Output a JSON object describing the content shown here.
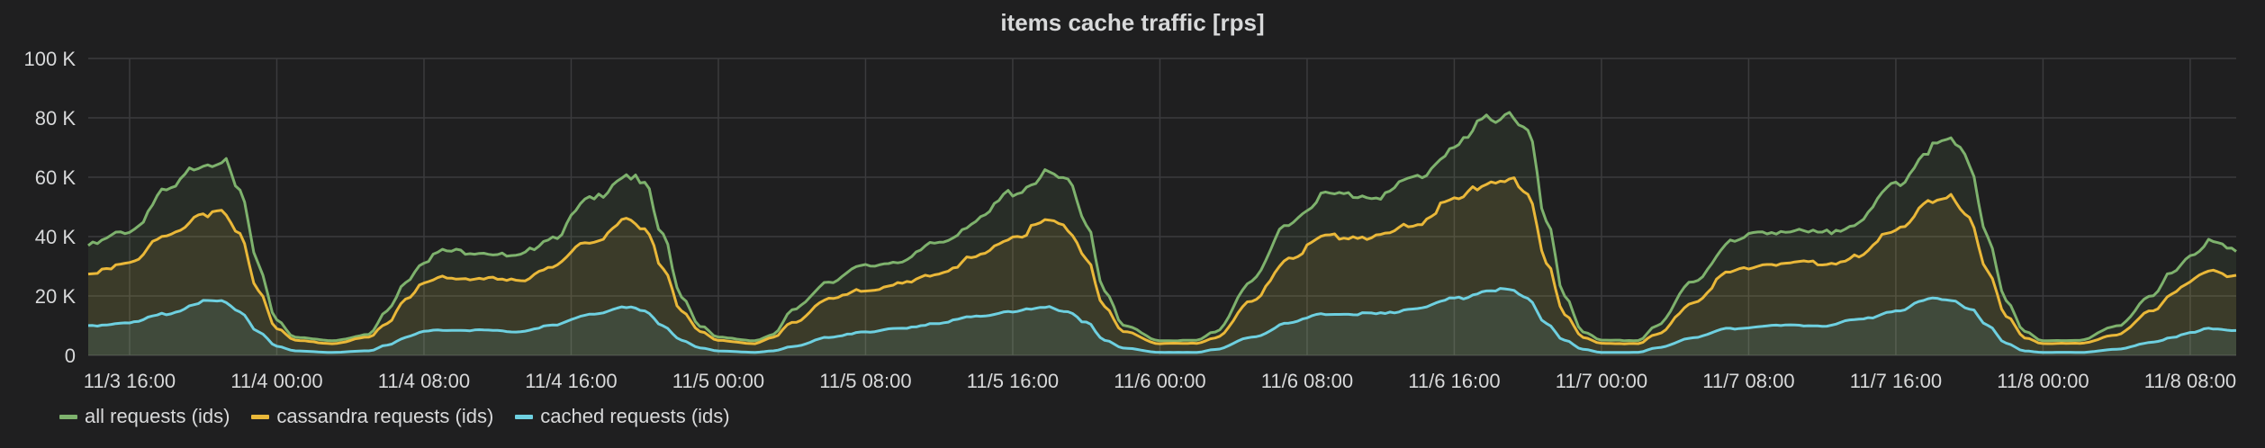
{
  "chart_data": {
    "type": "area",
    "title": "items cache traffic [rps]",
    "x_tick_labels": [
      "11/3 16:00",
      "11/4 00:00",
      "11/4 08:00",
      "11/4 16:00",
      "11/5 00:00",
      "11/5 08:00",
      "11/5 16:00",
      "11/6 00:00",
      "11/6 08:00",
      "11/6 16:00",
      "11/7 00:00",
      "11/7 08:00",
      "11/7 16:00",
      "11/8 00:00",
      "11/8 08:00"
    ],
    "x_hours_start": "11/3 13:45",
    "y_tick_labels": [
      "0",
      "20 K",
      "40 K",
      "60 K",
      "80 K",
      "100 K"
    ],
    "ylim": [
      0,
      100000
    ],
    "xlabel": "",
    "ylabel": "",
    "grid": true,
    "legend_position": "bottom-left",
    "series": [
      {
        "name": "all requests (ids)",
        "color": "#7eb26d",
        "points": [
          [
            "11/3 13:45",
            37000
          ],
          [
            "11/3 16:00",
            42000
          ],
          [
            "11/3 18:00",
            55000
          ],
          [
            "11/3 20:00",
            65000
          ],
          [
            "11/3 21:00",
            66000
          ],
          [
            "11/3 22:00",
            55000
          ],
          [
            "11/3 23:00",
            30000
          ],
          [
            "11/4 00:00",
            12000
          ],
          [
            "11/4 01:00",
            6000
          ],
          [
            "11/4 03:00",
            5000
          ],
          [
            "11/4 05:00",
            7000
          ],
          [
            "11/4 06:00",
            15000
          ],
          [
            "11/4 07:00",
            25000
          ],
          [
            "11/4 08:00",
            32000
          ],
          [
            "11/4 09:00",
            35000
          ],
          [
            "11/4 11:00",
            35000
          ],
          [
            "11/4 13:00",
            33000
          ],
          [
            "11/4 15:00",
            40000
          ],
          [
            "11/4 17:00",
            52000
          ],
          [
            "11/4 19:00",
            61000
          ],
          [
            "11/4 20:00",
            57000
          ],
          [
            "11/4 21:00",
            40000
          ],
          [
            "11/4 22:00",
            20000
          ],
          [
            "11/4 23:00",
            10000
          ],
          [
            "11/5 00:00",
            6000
          ],
          [
            "11/5 02:00",
            5000
          ],
          [
            "11/5 03:00",
            7000
          ],
          [
            "11/5 04:00",
            15000
          ],
          [
            "11/5 06:00",
            25000
          ],
          [
            "11/5 08:00",
            30000
          ],
          [
            "11/5 10:00",
            32000
          ],
          [
            "11/5 12:00",
            38000
          ],
          [
            "11/5 14:00",
            45000
          ],
          [
            "11/5 16:00",
            55000
          ],
          [
            "11/5 18:00",
            61000
          ],
          [
            "11/5 19:00",
            58000
          ],
          [
            "11/5 20:00",
            45000
          ],
          [
            "11/5 21:00",
            22000
          ],
          [
            "11/5 22:00",
            10000
          ],
          [
            "11/6 00:00",
            5000
          ],
          [
            "11/6 02:00",
            5000
          ],
          [
            "11/6 03:00",
            8000
          ],
          [
            "11/6 05:00",
            25000
          ],
          [
            "11/6 07:00",
            45000
          ],
          [
            "11/6 09:00",
            54000
          ],
          [
            "11/6 12:00",
            54000
          ],
          [
            "11/6 14:00",
            60000
          ],
          [
            "11/6 16:00",
            70000
          ],
          [
            "11/6 18:00",
            80000
          ],
          [
            "11/6 19:00",
            82000
          ],
          [
            "11/6 20:00",
            75000
          ],
          [
            "11/6 21:00",
            45000
          ],
          [
            "11/6 22:00",
            20000
          ],
          [
            "11/6 23:00",
            8000
          ],
          [
            "11/7 00:00",
            5000
          ],
          [
            "11/7 02:00",
            5000
          ],
          [
            "11/7 03:00",
            10000
          ],
          [
            "11/7 05:00",
            25000
          ],
          [
            "11/7 07:00",
            38000
          ],
          [
            "11/7 09:00",
            42000
          ],
          [
            "11/7 12:00",
            41000
          ],
          [
            "11/7 14:00",
            45000
          ],
          [
            "11/7 16:00",
            58000
          ],
          [
            "11/7 18:00",
            70000
          ],
          [
            "11/7 19:00",
            72000
          ],
          [
            "11/7 20:00",
            65000
          ],
          [
            "11/7 21:00",
            40000
          ],
          [
            "11/7 22:00",
            18000
          ],
          [
            "11/7 23:00",
            8000
          ],
          [
            "11/8 00:00",
            5000
          ],
          [
            "11/8 02:00",
            5000
          ],
          [
            "11/8 04:00",
            10000
          ],
          [
            "11/8 06:00",
            20000
          ],
          [
            "11/8 07:00",
            28000
          ],
          [
            "11/8 08:00",
            34000
          ],
          [
            "11/8 09:00",
            38000
          ],
          [
            "11/8 10:30",
            35000
          ]
        ]
      },
      {
        "name": "cassandra requests (ids)",
        "color": "#eab839",
        "points": [
          [
            "11/3 13:45",
            27000
          ],
          [
            "11/3 16:00",
            32000
          ],
          [
            "11/3 18:00",
            40000
          ],
          [
            "11/3 20:00",
            48000
          ],
          [
            "11/3 21:00",
            48000
          ],
          [
            "11/3 22:00",
            40000
          ],
          [
            "11/3 23:00",
            22000
          ],
          [
            "11/4 00:00",
            9000
          ],
          [
            "11/4 01:00",
            5000
          ],
          [
            "11/4 03:00",
            4000
          ],
          [
            "11/4 05:00",
            6000
          ],
          [
            "11/4 06:00",
            11000
          ],
          [
            "11/4 07:00",
            19000
          ],
          [
            "11/4 08:00",
            24000
          ],
          [
            "11/4 09:00",
            26000
          ],
          [
            "11/4 11:00",
            26000
          ],
          [
            "11/4 13:00",
            25000
          ],
          [
            "11/4 15:00",
            30000
          ],
          [
            "11/4 17:00",
            38000
          ],
          [
            "11/4 19:00",
            45000
          ],
          [
            "11/4 20:00",
            42000
          ],
          [
            "11/4 21:00",
            30000
          ],
          [
            "11/4 22:00",
            15000
          ],
          [
            "11/4 23:00",
            8000
          ],
          [
            "11/5 00:00",
            5000
          ],
          [
            "11/5 02:00",
            4000
          ],
          [
            "11/5 03:00",
            6000
          ],
          [
            "11/5 04:00",
            11000
          ],
          [
            "11/5 06:00",
            19000
          ],
          [
            "11/5 08:00",
            22000
          ],
          [
            "11/5 10:00",
            24000
          ],
          [
            "11/5 12:00",
            28000
          ],
          [
            "11/5 14:00",
            33000
          ],
          [
            "11/5 16:00",
            40000
          ],
          [
            "11/5 18:00",
            45000
          ],
          [
            "11/5 19:00",
            43000
          ],
          [
            "11/5 20:00",
            33000
          ],
          [
            "11/5 21:00",
            16000
          ],
          [
            "11/5 22:00",
            8000
          ],
          [
            "11/6 00:00",
            4000
          ],
          [
            "11/6 02:00",
            4000
          ],
          [
            "11/6 03:00",
            6000
          ],
          [
            "11/6 05:00",
            18000
          ],
          [
            "11/6 07:00",
            33000
          ],
          [
            "11/6 09:00",
            40000
          ],
          [
            "11/6 12:00",
            40000
          ],
          [
            "11/6 14:00",
            45000
          ],
          [
            "11/6 16:00",
            52000
          ],
          [
            "11/6 18:00",
            59000
          ],
          [
            "11/6 19:00",
            59000
          ],
          [
            "11/6 20:00",
            54000
          ],
          [
            "11/6 21:00",
            32000
          ],
          [
            "11/6 22:00",
            14000
          ],
          [
            "11/6 23:00",
            6000
          ],
          [
            "11/7 00:00",
            4000
          ],
          [
            "11/7 02:00",
            4000
          ],
          [
            "11/7 03:00",
            7000
          ],
          [
            "11/7 05:00",
            18000
          ],
          [
            "11/7 07:00",
            28000
          ],
          [
            "11/7 09:00",
            31000
          ],
          [
            "11/7 12:00",
            31000
          ],
          [
            "11/7 14:00",
            33000
          ],
          [
            "11/7 16:00",
            43000
          ],
          [
            "11/7 18:00",
            51000
          ],
          [
            "11/7 19:00",
            53000
          ],
          [
            "11/7 20:00",
            47000
          ],
          [
            "11/7 21:00",
            28000
          ],
          [
            "11/7 22:00",
            13000
          ],
          [
            "11/7 23:00",
            6000
          ],
          [
            "11/8 00:00",
            4000
          ],
          [
            "11/8 02:00",
            4000
          ],
          [
            "11/8 04:00",
            7000
          ],
          [
            "11/8 06:00",
            15000
          ],
          [
            "11/8 07:00",
            21000
          ],
          [
            "11/8 08:00",
            25000
          ],
          [
            "11/8 09:00",
            28000
          ],
          [
            "11/8 10:30",
            27000
          ]
        ]
      },
      {
        "name": "cached requests (ids)",
        "color": "#6ed0e0",
        "points": [
          [
            "11/3 13:45",
            10000
          ],
          [
            "11/3 16:00",
            11000
          ],
          [
            "11/3 18:00",
            14000
          ],
          [
            "11/3 20:00",
            18000
          ],
          [
            "11/3 21:00",
            18000
          ],
          [
            "11/3 22:00",
            15000
          ],
          [
            "11/3 23:00",
            8000
          ],
          [
            "11/4 00:00",
            3000
          ],
          [
            "11/4 01:00",
            1500
          ],
          [
            "11/4 03:00",
            1000
          ],
          [
            "11/4 05:00",
            1500
          ],
          [
            "11/4 06:00",
            3500
          ],
          [
            "11/4 07:00",
            6000
          ],
          [
            "11/4 08:00",
            8000
          ],
          [
            "11/4 09:00",
            8500
          ],
          [
            "11/4 11:00",
            8500
          ],
          [
            "11/4 13:00",
            8000
          ],
          [
            "11/4 15:00",
            10000
          ],
          [
            "11/4 17:00",
            14000
          ],
          [
            "11/4 19:00",
            16000
          ],
          [
            "11/4 20:00",
            15000
          ],
          [
            "11/4 21:00",
            10000
          ],
          [
            "11/4 22:00",
            5000
          ],
          [
            "11/4 23:00",
            2500
          ],
          [
            "11/5 00:00",
            1500
          ],
          [
            "11/5 02:00",
            1000
          ],
          [
            "11/5 03:00",
            1500
          ],
          [
            "11/5 04:00",
            3000
          ],
          [
            "11/5 06:00",
            6000
          ],
          [
            "11/5 08:00",
            8000
          ],
          [
            "11/5 10:00",
            9000
          ],
          [
            "11/5 12:00",
            11000
          ],
          [
            "11/5 14:00",
            13000
          ],
          [
            "11/5 16:00",
            15000
          ],
          [
            "11/5 18:00",
            16000
          ],
          [
            "11/5 19:00",
            15000
          ],
          [
            "11/5 20:00",
            11000
          ],
          [
            "11/5 21:00",
            5000
          ],
          [
            "11/5 22:00",
            2500
          ],
          [
            "11/6 00:00",
            1000
          ],
          [
            "11/6 02:00",
            1000
          ],
          [
            "11/6 03:00",
            2000
          ],
          [
            "11/6 05:00",
            6000
          ],
          [
            "11/6 07:00",
            11000
          ],
          [
            "11/6 09:00",
            14000
          ],
          [
            "11/6 12:00",
            14000
          ],
          [
            "11/6 14:00",
            16000
          ],
          [
            "11/6 16:00",
            19000
          ],
          [
            "11/6 18:00",
            22000
          ],
          [
            "11/6 19:00",
            22000
          ],
          [
            "11/6 20:00",
            19000
          ],
          [
            "11/6 21:00",
            11000
          ],
          [
            "11/6 22:00",
            5000
          ],
          [
            "11/6 23:00",
            2000
          ],
          [
            "11/7 00:00",
            1000
          ],
          [
            "11/7 02:00",
            1000
          ],
          [
            "11/7 03:00",
            2500
          ],
          [
            "11/7 05:00",
            6000
          ],
          [
            "11/7 07:00",
            9000
          ],
          [
            "11/7 09:00",
            10000
          ],
          [
            "11/7 12:00",
            10000
          ],
          [
            "11/7 14:00",
            12000
          ],
          [
            "11/7 16:00",
            15000
          ],
          [
            "11/7 18:00",
            19000
          ],
          [
            "11/7 19:00",
            19000
          ],
          [
            "11/7 20:00",
            16000
          ],
          [
            "11/7 21:00",
            10000
          ],
          [
            "11/7 22:00",
            4000
          ],
          [
            "11/7 23:00",
            1500
          ],
          [
            "11/8 00:00",
            1000
          ],
          [
            "11/8 02:00",
            1000
          ],
          [
            "11/8 04:00",
            2000
          ],
          [
            "11/8 06:00",
            4500
          ],
          [
            "11/8 07:00",
            6000
          ],
          [
            "11/8 08:00",
            7500
          ],
          [
            "11/8 09:00",
            9000
          ],
          [
            "11/8 10:30",
            8500
          ]
        ]
      }
    ]
  }
}
